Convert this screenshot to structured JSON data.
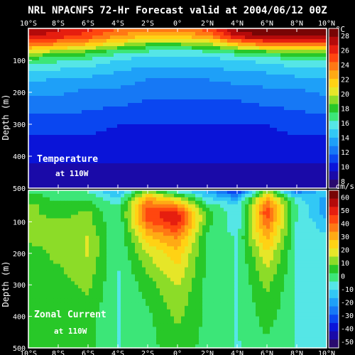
{
  "chart_data": [
    {
      "type": "heatmap",
      "title": "NRL NPACNFS 72-Hr Forecast valid at 2004/06/12 00Z",
      "panel_label": "Temperature",
      "panel_sublabel": "at 110W",
      "ylabel": "Depth (m)",
      "colorbar_unit": "°C",
      "x_ticks": [
        "10°S",
        "8°S",
        "6°S",
        "4°S",
        "2°S",
        "0°",
        "2°N",
        "4°N",
        "6°N",
        "8°N",
        "10°N"
      ],
      "x_values": [
        -10,
        -8,
        -6,
        -4,
        -2,
        0,
        2,
        4,
        6,
        8,
        10
      ],
      "y_ticks": [
        100,
        200,
        300,
        400,
        500
      ],
      "ylim": [
        500,
        0
      ],
      "colorbar_ticks": [
        28,
        26,
        24,
        22,
        20,
        18,
        16,
        14,
        12,
        10,
        8
      ],
      "value_range": [
        7,
        29
      ],
      "depth_levels": [
        0,
        25,
        50,
        75,
        100,
        150,
        200,
        300,
        400,
        500
      ],
      "lat_values": [
        -10,
        -8,
        -6,
        -4,
        -2,
        0,
        2,
        4,
        6,
        8,
        10
      ],
      "values": [
        [
          28,
          27,
          26,
          24.5,
          24,
          24,
          25,
          28,
          29,
          29,
          29
        ],
        [
          27,
          26,
          25,
          23,
          22,
          22,
          23,
          27,
          28,
          28,
          28
        ],
        [
          24,
          23,
          22,
          20,
          18.5,
          18.5,
          19,
          22,
          24,
          24,
          24
        ],
        [
          20,
          19,
          18,
          16.5,
          16,
          15.5,
          16,
          17,
          18,
          18.5,
          19
        ],
        [
          17,
          16.5,
          16,
          15,
          14.5,
          14.5,
          14.5,
          15,
          15.5,
          16,
          16
        ],
        [
          14.5,
          14,
          14,
          13.5,
          13,
          13,
          13,
          13.5,
          13.5,
          14,
          14
        ],
        [
          13,
          13,
          12.5,
          12.5,
          12,
          12,
          12,
          12,
          12.5,
          12.5,
          13
        ],
        [
          11,
          11,
          11,
          10.5,
          10.5,
          10.5,
          10.5,
          10.5,
          10.5,
          11,
          11
        ],
        [
          9.5,
          9.5,
          9.5,
          9.5,
          9.5,
          9.5,
          9.5,
          9.5,
          9.5,
          9.5,
          9.5
        ],
        [
          8.5,
          8.5,
          8.5,
          8.5,
          8.5,
          8.5,
          8.5,
          8.5,
          8.5,
          8.5,
          8.5
        ]
      ]
    },
    {
      "type": "heatmap",
      "panel_label": "Zonal Current",
      "panel_sublabel": "at 110W",
      "ylabel": "Depth (m)",
      "colorbar_unit": "cm/s",
      "x_ticks": [
        "10°S",
        "8°S",
        "6°S",
        "4°S",
        "2°S",
        "0°",
        "2°N",
        "4°N",
        "6°N",
        "8°N",
        "10°N"
      ],
      "x_values": [
        -10,
        -8,
        -6,
        -4,
        -2,
        0,
        2,
        4,
        6,
        8,
        10
      ],
      "y_ticks": [
        100,
        200,
        300,
        400,
        500
      ],
      "ylim": [
        500,
        0
      ],
      "colorbar_ticks": [
        60,
        50,
        40,
        30,
        20,
        10,
        0,
        -10,
        -20,
        -30,
        -40,
        -50
      ],
      "value_range": [
        -55,
        65
      ],
      "depth_levels": [
        0,
        25,
        50,
        75,
        100,
        150,
        200,
        300,
        400,
        500
      ],
      "lat_values": [
        -10,
        -8,
        -6,
        -4,
        -2,
        0,
        2,
        4,
        6,
        8,
        10
      ],
      "values": [
        [
          0,
          0,
          -5,
          -20,
          10,
          -10,
          -20,
          -40,
          10,
          -30,
          -10
        ],
        [
          5,
          0,
          0,
          -10,
          30,
          15,
          -10,
          -20,
          30,
          -10,
          -20
        ],
        [
          10,
          5,
          5,
          -5,
          40,
          35,
          0,
          -10,
          40,
          -5,
          -20
        ],
        [
          10,
          5,
          10,
          -5,
          45,
          50,
          5,
          -10,
          45,
          -5,
          -20
        ],
        [
          10,
          10,
          10,
          -5,
          40,
          50,
          5,
          -10,
          40,
          -5,
          -15
        ],
        [
          10,
          10,
          15,
          -5,
          25,
          35,
          0,
          -5,
          30,
          -5,
          -10
        ],
        [
          5,
          10,
          15,
          -5,
          15,
          25,
          0,
          -5,
          20,
          -5,
          -5
        ],
        [
          5,
          5,
          10,
          -5,
          5,
          15,
          0,
          -5,
          10,
          -5,
          -5
        ],
        [
          5,
          5,
          5,
          -5,
          0,
          10,
          0,
          -5,
          5,
          -5,
          -5
        ],
        [
          5,
          5,
          5,
          -5,
          0,
          5,
          0,
          -5,
          0,
          -5,
          -5
        ]
      ]
    }
  ]
}
